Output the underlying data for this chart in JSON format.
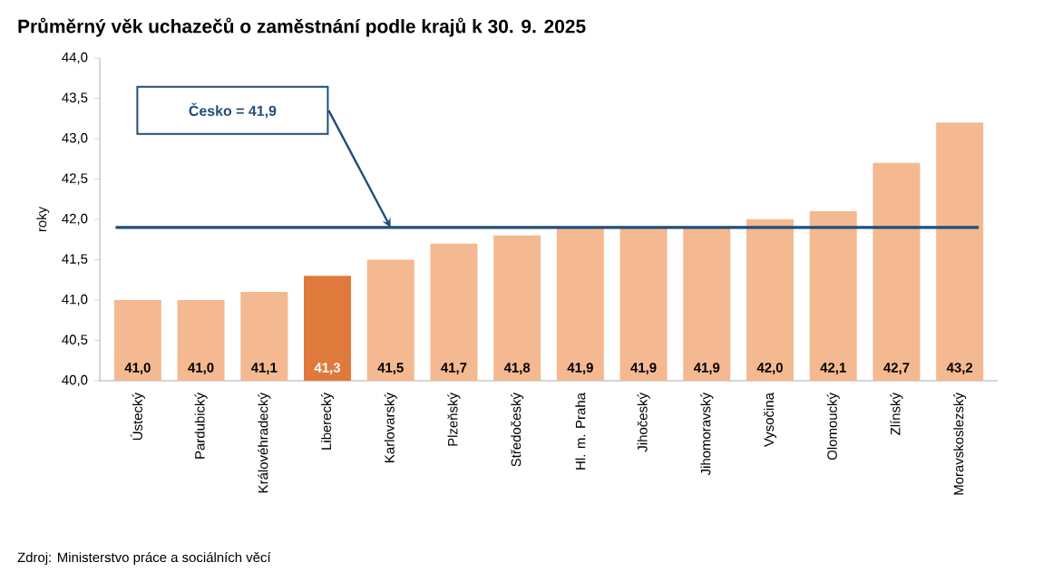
{
  "chart_data": {
    "type": "bar",
    "title": "Průměrný věk uchazečů o zaměstnání podle krajů k 30. 9. 2025",
    "ylabel": "roky",
    "categories": [
      "Ústecký",
      "Pardubický",
      "Královéhradecký",
      "Liberecký",
      "Karlovarský",
      "Plzeňský",
      "Středočeský",
      "Hl. m. Praha",
      "Jihočeský",
      "Jihomoravský",
      "Vysočina",
      "Olomoucký",
      "Zlínský",
      "Moravskoslezský"
    ],
    "values": [
      41.0,
      41.0,
      41.1,
      41.3,
      41.5,
      41.7,
      41.8,
      41.9,
      41.9,
      41.9,
      42.0,
      42.1,
      42.7,
      43.2
    ],
    "value_labels": [
      "41,0",
      "41,0",
      "41,1",
      "41,3",
      "41,5",
      "41,7",
      "41,8",
      "41,9",
      "41,9",
      "41,9",
      "42,0",
      "42,1",
      "42,7",
      "43,2"
    ],
    "colors": [
      "#f4b990",
      "#f4b990",
      "#f4b990",
      "#e07a3c",
      "#f4b990",
      "#f4b990",
      "#f4b990",
      "#f4b990",
      "#f4b990",
      "#f4b990",
      "#f4b990",
      "#f4b990",
      "#f4b990",
      "#f4b990"
    ],
    "ylim": [
      40,
      44
    ],
    "yticks": [
      {
        "value": 40,
        "label": "40,0"
      },
      {
        "value": 40.5,
        "label": "40,5"
      },
      {
        "value": 41,
        "label": "41,0"
      },
      {
        "value": 41.5,
        "label": "41,5"
      },
      {
        "value": 42,
        "label": "42,0"
      },
      {
        "value": 42.5,
        "label": "42,5"
      },
      {
        "value": 43,
        "label": "43,0"
      },
      {
        "value": 43.5,
        "label": "43,5"
      },
      {
        "value": 44,
        "label": "44,0"
      }
    ],
    "ref_lines": [
      {
        "axis": "y",
        "value": 41.9,
        "label": "Česko = 41,9",
        "color": "#1f4e79"
      }
    ],
    "annotations": [
      "Zdroj: Ministerstvo práce a sociálních věcí"
    ],
    "grid": false
  }
}
